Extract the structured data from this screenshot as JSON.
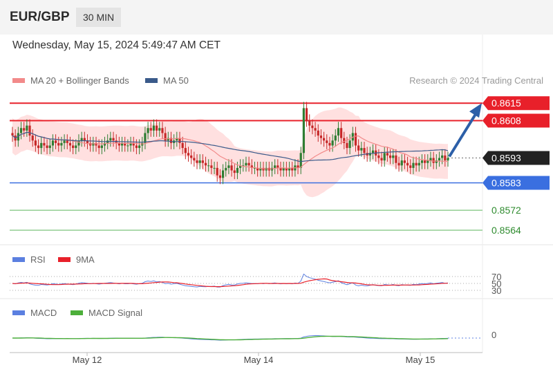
{
  "header": {
    "pair": "EUR/GBP",
    "timeframe": "30 MIN"
  },
  "datetime": "Wednesday, May 15, 2024 5:49:47 AM CET",
  "legend": {
    "ma20_label": "MA 20 + Bollinger Bands",
    "ma50_label": "MA 50",
    "credit": "Research © 2024 Trading Central",
    "rsi_label": "RSI",
    "rsi_ma_label": "9MA",
    "macd_label": "MACD",
    "macd_signal_label": "MACD Signal"
  },
  "colors": {
    "resistance": "#e8202a",
    "support": "#3a6fe0",
    "target": "#5cb85c",
    "current": "#222222",
    "candle_up": "#2e7d32",
    "candle_down": "#c62828",
    "ma20": "#f28a8a",
    "ma50": "#3a5a8a",
    "band_fill": "#ffd6d6",
    "arrow": "#2c5fa8"
  },
  "chart_data": {
    "type": "candlestick",
    "x_tick_labels": [
      "May 12",
      "May 14",
      "May 15"
    ],
    "ylim": [
      0.8559,
      0.8622
    ],
    "levels": [
      {
        "label": "0.8615",
        "value": 0.8615,
        "kind": "resistance"
      },
      {
        "label": "0.8608",
        "value": 0.8608,
        "kind": "resistance"
      },
      {
        "label": "0.8593",
        "value": 0.8593,
        "kind": "current"
      },
      {
        "label": "0.8583",
        "value": 0.8583,
        "kind": "support"
      },
      {
        "label": "0.8572",
        "value": 0.8572,
        "kind": "target"
      },
      {
        "label": "0.8564",
        "value": 0.8564,
        "kind": "target"
      }
    ],
    "close": [
      0.8602,
      0.86,
      0.8603,
      0.8605,
      0.8604,
      0.8606,
      0.8602,
      0.86,
      0.8598,
      0.8597,
      0.8599,
      0.8598,
      0.8597,
      0.8598,
      0.86,
      0.8599,
      0.8598,
      0.8599,
      0.86,
      0.8599,
      0.8598,
      0.8597,
      0.8598,
      0.86,
      0.8601,
      0.86,
      0.8599,
      0.8598,
      0.8599,
      0.8598,
      0.8597,
      0.8598,
      0.8599,
      0.86,
      0.8601,
      0.86,
      0.8599,
      0.8598,
      0.8599,
      0.8598,
      0.8598,
      0.8599,
      0.8598,
      0.8597,
      0.8598,
      0.8599,
      0.8603,
      0.8605,
      0.8604,
      0.8606,
      0.8604,
      0.8605,
      0.8603,
      0.86,
      0.8601,
      0.8599,
      0.86,
      0.8601,
      0.8599,
      0.8597,
      0.8595,
      0.8594,
      0.8593,
      0.8592,
      0.8591,
      0.8592,
      0.8591,
      0.859,
      0.859,
      0.8589,
      0.8589,
      0.8586,
      0.8585,
      0.8588,
      0.8589,
      0.859,
      0.8588,
      0.8587,
      0.8589,
      0.859,
      0.859,
      0.8591,
      0.859,
      0.8589,
      0.8589,
      0.8588,
      0.8589,
      0.8588,
      0.8589,
      0.8588,
      0.8589,
      0.859,
      0.8589,
      0.8588,
      0.8589,
      0.8588,
      0.8589,
      0.8588,
      0.859,
      0.8589,
      0.8595,
      0.8613,
      0.8608,
      0.8606,
      0.8605,
      0.8604,
      0.8602,
      0.8601,
      0.86,
      0.8599,
      0.8598,
      0.86,
      0.8602,
      0.8605,
      0.8601,
      0.8599,
      0.8597,
      0.86,
      0.8603,
      0.8598,
      0.8596,
      0.8597,
      0.8595,
      0.8594,
      0.8595,
      0.8596,
      0.8594,
      0.8593,
      0.8592,
      0.8595,
      0.8594,
      0.8593,
      0.8594,
      0.8591,
      0.859,
      0.8592,
      0.8591,
      0.859,
      0.8589,
      0.8591,
      0.859,
      0.8591,
      0.8592,
      0.8591,
      0.8592,
      0.8593,
      0.8591,
      0.8592,
      0.8593,
      0.8594,
      0.8592,
      0.8593
    ],
    "rsi": {
      "levels": [
        70,
        50,
        30
      ]
    },
    "macd": {
      "zero_label": "0"
    }
  }
}
